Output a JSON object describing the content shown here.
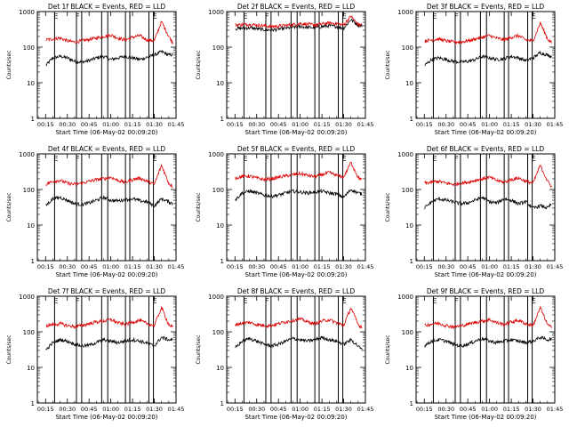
{
  "figure": {
    "y_tick_labels": [
      "1",
      "10",
      "100",
      "1000"
    ],
    "x_tick_labels": [
      "00:15",
      "00:30",
      "00:45",
      "01:00",
      "01:15",
      "01:30",
      "01:45"
    ],
    "flag_labels": {
      "e": "E",
      "f": "F"
    },
    "colors": {
      "events": "#000000",
      "lld": "#dd0000",
      "axes": "#000000",
      "background": "#ffffff"
    }
  },
  "chart_data": [
    {
      "type": "line",
      "detector": "Det 1f",
      "title": "Det 1f BLACK = Events, RED = LLD",
      "xlabel": "Start Time (06-May-02 00:09:20)",
      "ylabel": "Counts/sec",
      "yscale": "log",
      "ylim": [
        1,
        1000
      ],
      "xlim_minutes": [
        9.3,
        105.0
      ],
      "x_minutes": [
        10,
        15,
        20,
        25,
        30,
        35,
        40,
        45,
        50,
        55,
        60,
        65,
        70,
        75,
        80,
        85,
        90,
        95,
        100,
        103
      ],
      "series": [
        {
          "name": "BLACK = Events",
          "color": "#000000",
          "values": [
            null,
            30,
            50,
            55,
            50,
            40,
            38,
            42,
            50,
            55,
            45,
            50,
            55,
            50,
            45,
            52,
            60,
            75,
            60,
            62
          ]
        },
        {
          "name": "RED = LLD",
          "color": "#dd0000",
          "values": [
            null,
            160,
            170,
            180,
            150,
            140,
            150,
            165,
            180,
            200,
            220,
            180,
            160,
            190,
            210,
            160,
            150,
            520,
            200,
            130
          ]
        }
      ],
      "flag_lines_minutes": [
        21.2,
        36.3,
        39.9,
        53.7,
        57.9,
        70.1,
        73.1,
        86.3,
        89.4
      ],
      "flags": [
        {
          "label": "E",
          "at": 21.2
        },
        {
          "label": "F",
          "at": 36.3
        },
        {
          "label": "E",
          "at": 89.4
        }
      ]
    },
    {
      "type": "line",
      "detector": "Det 2f",
      "title": "Det 2f BLACK = Events, RED = LLD",
      "xlabel": "Start Time (06-May-02 00:09:20)",
      "ylabel": "Counts/sec",
      "yscale": "log",
      "ylim": [
        1,
        1000
      ],
      "xlim_minutes": [
        9.3,
        105.0
      ],
      "x_minutes": [
        10,
        15,
        20,
        25,
        30,
        35,
        40,
        45,
        50,
        55,
        60,
        65,
        70,
        75,
        80,
        85,
        90,
        95,
        100,
        103
      ],
      "series": [
        {
          "name": "BLACK = Events",
          "color": "#000000",
          "values": [
            null,
            330,
            340,
            350,
            330,
            310,
            300,
            320,
            340,
            360,
            380,
            360,
            350,
            380,
            400,
            380,
            340,
            600,
            420,
            400
          ]
        },
        {
          "name": "RED = LLD",
          "color": "#dd0000",
          "values": [
            null,
            420,
            430,
            440,
            420,
            400,
            380,
            390,
            410,
            430,
            460,
            440,
            420,
            450,
            480,
            460,
            420,
            750,
            430,
            420
          ]
        }
      ],
      "flag_lines_minutes": [
        21.2,
        36.3,
        39.9,
        53.7,
        57.9,
        70.1,
        73.1,
        86.3,
        89.4
      ],
      "flags": [
        {
          "label": "E",
          "at": 21.2
        },
        {
          "label": "F",
          "at": 36.3
        },
        {
          "label": "E",
          "at": 89.4
        }
      ]
    },
    {
      "type": "line",
      "detector": "Det 3f",
      "title": "Det 3f BLACK = Events, RED = LLD",
      "xlabel": "Start Time (06-May-02 00:09:20)",
      "ylabel": "Counts/sec",
      "yscale": "log",
      "ylim": [
        1,
        1000
      ],
      "xlim_minutes": [
        9.3,
        105.0
      ],
      "x_minutes": [
        10,
        15,
        20,
        25,
        30,
        35,
        40,
        45,
        50,
        55,
        60,
        65,
        70,
        75,
        80,
        85,
        90,
        95,
        100,
        103
      ],
      "series": [
        {
          "name": "BLACK = Events",
          "color": "#000000",
          "values": [
            null,
            30,
            45,
            50,
            45,
            40,
            38,
            40,
            45,
            55,
            50,
            45,
            48,
            55,
            50,
            42,
            50,
            70,
            60,
            55
          ]
        },
        {
          "name": "RED = LLD",
          "color": "#dd0000",
          "values": [
            null,
            150,
            160,
            170,
            150,
            140,
            140,
            150,
            170,
            190,
            210,
            180,
            160,
            190,
            210,
            160,
            150,
            480,
            170,
            130
          ]
        }
      ],
      "flag_lines_minutes": [
        21.2,
        36.3,
        39.9,
        53.7,
        57.9,
        70.1,
        73.1,
        86.3,
        89.4
      ],
      "flags": [
        {
          "label": "E",
          "at": 21.2
        },
        {
          "label": "F",
          "at": 36.3
        },
        {
          "label": "E",
          "at": 89.4
        }
      ]
    },
    {
      "type": "line",
      "detector": "Det 4f",
      "title": "Det 4f BLACK = Events, RED = LLD",
      "xlabel": "Start Time (06-May-02 00:09:20)",
      "ylabel": "Counts/sec",
      "yscale": "log",
      "ylim": [
        1,
        1000
      ],
      "xlim_minutes": [
        9.3,
        105.0
      ],
      "x_minutes": [
        10,
        15,
        20,
        25,
        30,
        35,
        40,
        45,
        50,
        55,
        60,
        65,
        70,
        75,
        80,
        85,
        90,
        95,
        100,
        103
      ],
      "series": [
        {
          "name": "BLACK = Events",
          "color": "#000000",
          "values": [
            null,
            35,
            55,
            60,
            50,
            40,
            38,
            42,
            50,
            60,
            50,
            48,
            52,
            55,
            48,
            45,
            35,
            55,
            45,
            40
          ]
        },
        {
          "name": "RED = LLD",
          "color": "#dd0000",
          "values": [
            null,
            140,
            170,
            180,
            150,
            140,
            150,
            170,
            190,
            200,
            220,
            180,
            160,
            190,
            210,
            170,
            140,
            480,
            150,
            120
          ]
        }
      ],
      "flag_lines_minutes": [
        21.2,
        36.3,
        39.9,
        53.7,
        57.9,
        70.1,
        73.1,
        86.3,
        89.4
      ],
      "flags": [
        {
          "label": "E",
          "at": 21.2
        },
        {
          "label": "F",
          "at": 36.3
        },
        {
          "label": "E",
          "at": 89.4
        }
      ]
    },
    {
      "type": "line",
      "detector": "Det 5f",
      "title": "Det 5f BLACK = Events, RED = LLD",
      "xlabel": "Start Time (06-May-02 00:09:20)",
      "ylabel": "Counts/sec",
      "yscale": "log",
      "ylim": [
        1,
        1000
      ],
      "xlim_minutes": [
        9.3,
        105.0
      ],
      "x_minutes": [
        10,
        15,
        20,
        25,
        30,
        35,
        40,
        45,
        50,
        55,
        60,
        65,
        70,
        75,
        80,
        85,
        90,
        95,
        100,
        103
      ],
      "series": [
        {
          "name": "BLACK = Events",
          "color": "#000000",
          "values": [
            null,
            50,
            80,
            90,
            80,
            70,
            65,
            70,
            80,
            90,
            85,
            80,
            85,
            90,
            80,
            75,
            60,
            100,
            80,
            75
          ]
        },
        {
          "name": "RED = LLD",
          "color": "#dd0000",
          "values": [
            null,
            210,
            230,
            240,
            210,
            190,
            200,
            220,
            240,
            260,
            280,
            250,
            230,
            260,
            300,
            250,
            220,
            580,
            220,
            180
          ]
        }
      ],
      "flag_lines_minutes": [
        21.2,
        36.3,
        39.9,
        53.7,
        57.9,
        70.1,
        73.1,
        86.3,
        89.4
      ],
      "flags": [
        {
          "label": "E",
          "at": 21.2
        },
        {
          "label": "F",
          "at": 36.3
        },
        {
          "label": "E",
          "at": 89.4
        }
      ]
    },
    {
      "type": "line",
      "detector": "Det 6f",
      "title": "Det 6f BLACK = Events, RED = LLD",
      "xlabel": "Start Time (06-May-02 00:09:20)",
      "ylabel": "Counts/sec",
      "yscale": "log",
      "ylim": [
        1,
        1000
      ],
      "xlim_minutes": [
        9.3,
        105.0
      ],
      "x_minutes": [
        10,
        15,
        20,
        25,
        30,
        35,
        40,
        45,
        50,
        55,
        60,
        65,
        70,
        75,
        80,
        85,
        90,
        95,
        100,
        103
      ],
      "series": [
        {
          "name": "BLACK = Events",
          "color": "#000000",
          "values": [
            null,
            30,
            45,
            55,
            50,
            45,
            40,
            42,
            50,
            60,
            45,
            42,
            55,
            50,
            40,
            45,
            30,
            35,
            30,
            40
          ]
        },
        {
          "name": "RED = LLD",
          "color": "#dd0000",
          "values": [
            null,
            150,
            160,
            170,
            150,
            140,
            150,
            160,
            180,
            200,
            220,
            180,
            160,
            190,
            210,
            170,
            150,
            480,
            170,
            120
          ]
        }
      ],
      "flag_lines_minutes": [
        21.2,
        36.3,
        39.9,
        53.7,
        57.9,
        70.1,
        73.1,
        86.3,
        89.4
      ],
      "flags": [
        {
          "label": "E",
          "at": 21.2
        },
        {
          "label": "F",
          "at": 36.3
        },
        {
          "label": "E",
          "at": 89.4
        }
      ]
    },
    {
      "type": "line",
      "detector": "Det 7f",
      "title": "Det 7f BLACK = Events, RED = LLD",
      "xlabel": "Start Time (06-May-02 00:09:20)",
      "ylabel": "Counts/sec",
      "yscale": "log",
      "ylim": [
        1,
        1000
      ],
      "xlim_minutes": [
        9.3,
        105.0
      ],
      "x_minutes": [
        10,
        15,
        20,
        25,
        30,
        35,
        40,
        45,
        50,
        55,
        60,
        65,
        70,
        75,
        80,
        85,
        90,
        95,
        100,
        103
      ],
      "series": [
        {
          "name": "BLACK = Events",
          "color": "#000000",
          "values": [
            null,
            30,
            50,
            60,
            55,
            45,
            40,
            42,
            50,
            60,
            55,
            50,
            55,
            60,
            55,
            48,
            40,
            70,
            60,
            60
          ]
        },
        {
          "name": "RED = LLD",
          "color": "#dd0000",
          "values": [
            null,
            150,
            160,
            170,
            150,
            140,
            150,
            170,
            190,
            200,
            220,
            180,
            160,
            190,
            210,
            170,
            150,
            480,
            160,
            130
          ]
        }
      ],
      "flag_lines_minutes": [
        21.2,
        36.3,
        39.9,
        53.7,
        57.9,
        70.1,
        73.1,
        86.3,
        89.4
      ],
      "flags": [
        {
          "label": "E",
          "at": 21.2
        },
        {
          "label": "F",
          "at": 36.3
        },
        {
          "label": "E",
          "at": 89.4
        }
      ]
    },
    {
      "type": "line",
      "detector": "Det 8f",
      "title": "Det 8f BLACK = Events, RED = LLD",
      "xlabel": "Start Time (06-May-02 00:09:20)",
      "ylabel": "Counts/sec",
      "yscale": "log",
      "ylim": [
        1,
        1000
      ],
      "xlim_minutes": [
        9.3,
        105.0
      ],
      "x_minutes": [
        10,
        15,
        20,
        25,
        30,
        35,
        40,
        45,
        50,
        55,
        60,
        65,
        70,
        75,
        80,
        85,
        90,
        95,
        100,
        103
      ],
      "series": [
        {
          "name": "BLACK = Events",
          "color": "#000000",
          "values": [
            null,
            35,
            55,
            65,
            55,
            45,
            40,
            45,
            55,
            65,
            60,
            55,
            60,
            70,
            60,
            55,
            45,
            60,
            40,
            30
          ]
        },
        {
          "name": "RED = LLD",
          "color": "#dd0000",
          "values": [
            null,
            160,
            175,
            185,
            160,
            150,
            150,
            170,
            190,
            210,
            230,
            190,
            170,
            200,
            220,
            180,
            150,
            480,
            160,
            130
          ]
        }
      ],
      "flag_lines_minutes": [
        21.2,
        36.3,
        39.9,
        53.7,
        57.9,
        70.1,
        73.1,
        86.3,
        89.4
      ],
      "flags": [
        {
          "label": "E",
          "at": 21.2
        },
        {
          "label": "F",
          "at": 36.3
        },
        {
          "label": "E",
          "at": 89.4
        }
      ]
    },
    {
      "type": "line",
      "detector": "Det 9f",
      "title": "Det 9f BLACK = Events, RED = LLD",
      "xlabel": "Start Time (06-May-02 00:09:20)",
      "ylabel": "Counts/sec",
      "yscale": "log",
      "ylim": [
        1,
        1000
      ],
      "xlim_minutes": [
        9.3,
        105.0
      ],
      "x_minutes": [
        10,
        15,
        20,
        25,
        30,
        35,
        40,
        45,
        50,
        55,
        60,
        65,
        70,
        75,
        80,
        85,
        90,
        95,
        100,
        103
      ],
      "series": [
        {
          "name": "BLACK = Events",
          "color": "#000000",
          "values": [
            null,
            40,
            55,
            60,
            55,
            45,
            40,
            45,
            55,
            65,
            55,
            50,
            55,
            60,
            55,
            50,
            55,
            70,
            60,
            65
          ]
        },
        {
          "name": "RED = LLD",
          "color": "#dd0000",
          "values": [
            null,
            150,
            165,
            175,
            150,
            140,
            145,
            165,
            185,
            200,
            220,
            180,
            160,
            190,
            210,
            170,
            150,
            480,
            160,
            130
          ]
        }
      ],
      "flag_lines_minutes": [
        21.2,
        36.3,
        39.9,
        53.7,
        57.9,
        70.1,
        73.1,
        86.3,
        89.4
      ],
      "flags": [
        {
          "label": "E",
          "at": 21.2
        },
        {
          "label": "F",
          "at": 36.3
        },
        {
          "label": "E",
          "at": 89.4
        }
      ]
    }
  ]
}
